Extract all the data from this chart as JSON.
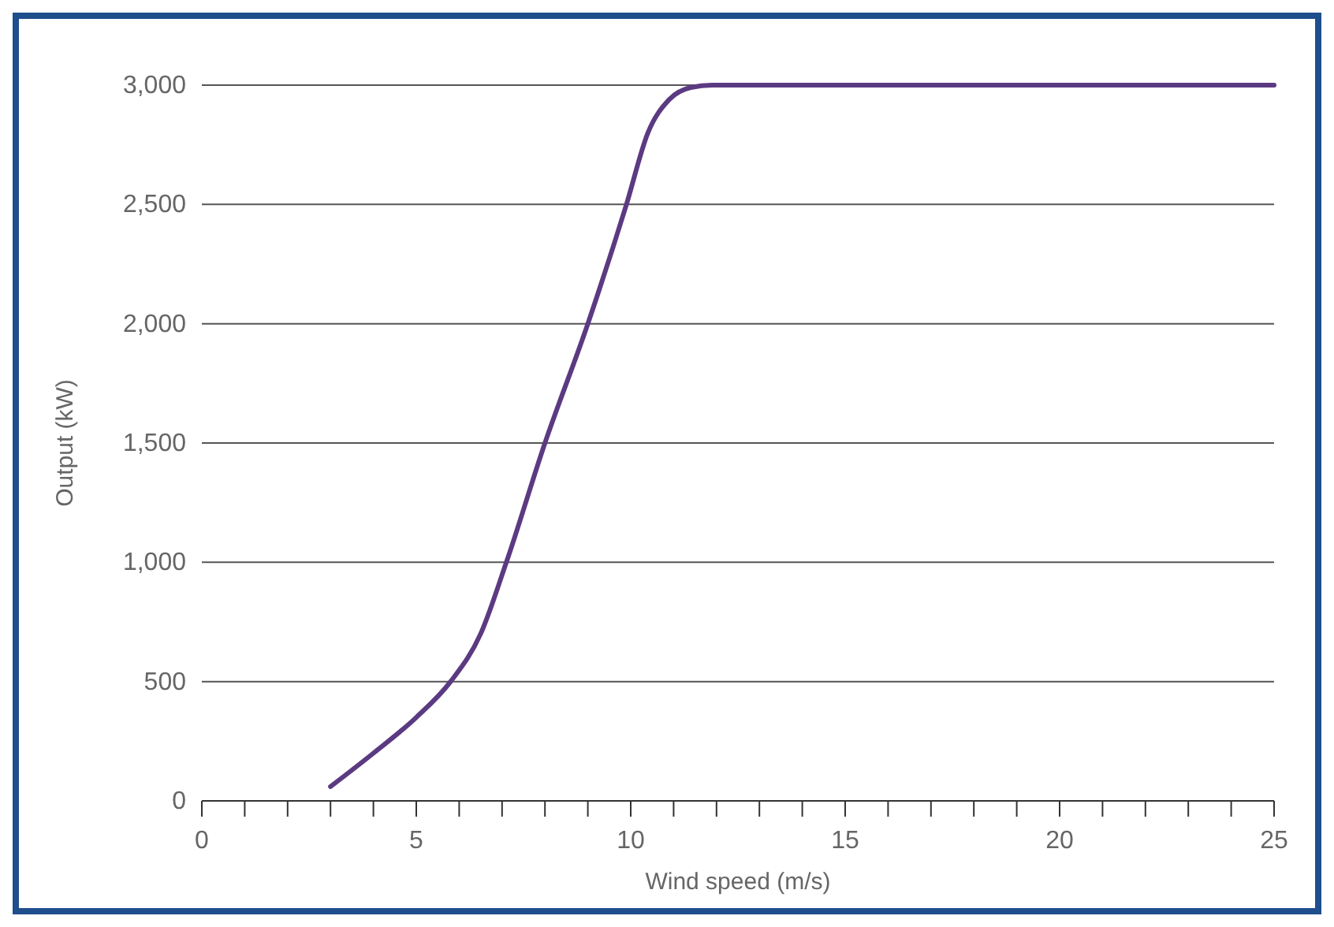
{
  "chart_data": {
    "type": "line",
    "xlabel": "Wind speed (m/s)",
    "ylabel": "Output (kW)",
    "x": [
      3,
      4,
      5,
      5.8,
      6.5,
      7.1,
      8,
      9,
      9.9,
      10.4,
      10.9,
      11.4,
      11.9,
      25
    ],
    "series": [
      {
        "color": "#5b3a82",
        "values": [
          60,
          200,
          350,
          500,
          700,
          1000,
          1500,
          2000,
          2500,
          2800,
          2940,
          2990,
          3000,
          3000
        ]
      }
    ],
    "xlim": [
      0,
      25
    ],
    "xticks": [
      0,
      {
        "value": 1,
        "label": null
      },
      {
        "value": 2,
        "label": null
      },
      {
        "value": 3,
        "label": null
      },
      {
        "value": 4,
        "label": null
      },
      5,
      {
        "value": 6,
        "label": null
      },
      {
        "value": 7,
        "label": null
      },
      {
        "value": 8,
        "label": null
      },
      {
        "value": 9,
        "label": null
      },
      10,
      {
        "value": 11,
        "label": null
      },
      {
        "value": 12,
        "label": null
      },
      {
        "value": 13,
        "label": null
      },
      {
        "value": 14,
        "label": null
      },
      15,
      {
        "value": 16,
        "label": null
      },
      {
        "value": 17,
        "label": null
      },
      {
        "value": 18,
        "label": null
      },
      {
        "value": 19,
        "label": null
      },
      20,
      {
        "value": 21,
        "label": null
      },
      {
        "value": 22,
        "label": null
      },
      {
        "value": 23,
        "label": null
      },
      {
        "value": 24,
        "label": null
      },
      25
    ],
    "ylim": [
      0,
      3000
    ],
    "yticks": [
      0,
      500,
      {
        "value": 1000,
        "label": "1,000"
      },
      {
        "value": 1500,
        "label": "1,500"
      },
      {
        "value": 2000,
        "label": "2,000"
      },
      {
        "value": 2500,
        "label": "2,500"
      },
      {
        "value": 3000,
        "label": "3,000"
      }
    ],
    "grid": "y",
    "marker": "none",
    "line_style": "solid"
  }
}
